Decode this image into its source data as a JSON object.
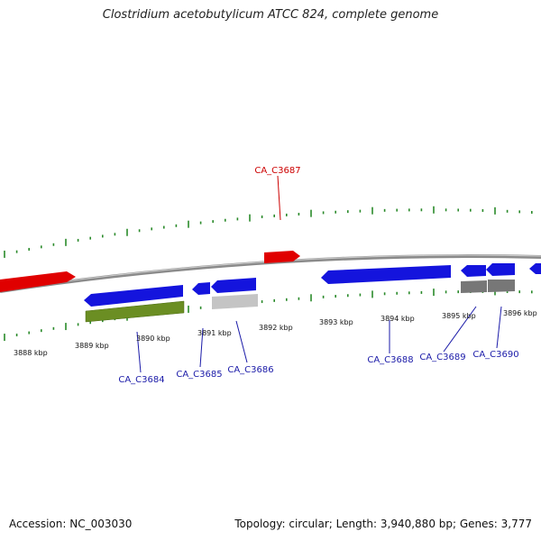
{
  "title": "Clostridium acetobutylicum ATCC 824, complete genome",
  "footer": {
    "accession": "Accession: NC_003030",
    "summary": "Topology: circular; Length: 3,940,880 bp; Genes: 3,777"
  },
  "colors": {
    "forward": "#dd0000",
    "reverse": "#0000dd",
    "reverse_label": "#1a1aa8",
    "forward_label": "#cc0000",
    "tick": "#2a8a2a",
    "backbone": "#999999",
    "green_feature": "#6b8e23",
    "light_feature": "#bdbdbd",
    "dark_feature": "#777777"
  },
  "kbp_labels": [
    "3888 kbp",
    "3889 kbp",
    "3890 kbp",
    "3891 kbp",
    "3892 kbp",
    "3893 kbp",
    "3894 kbp",
    "3895 kbp",
    "3896 kbp"
  ],
  "gene_labels": [
    {
      "name": "CA_C3687",
      "strand": "forward"
    },
    {
      "name": "CA_C3684",
      "strand": "reverse"
    },
    {
      "name": "CA_C3685",
      "strand": "reverse"
    },
    {
      "name": "CA_C3686",
      "strand": "reverse"
    },
    {
      "name": "CA_C3688",
      "strand": "reverse"
    },
    {
      "name": "CA_C3689",
      "strand": "reverse"
    },
    {
      "name": "CA_C3690",
      "strand": "reverse"
    }
  ]
}
